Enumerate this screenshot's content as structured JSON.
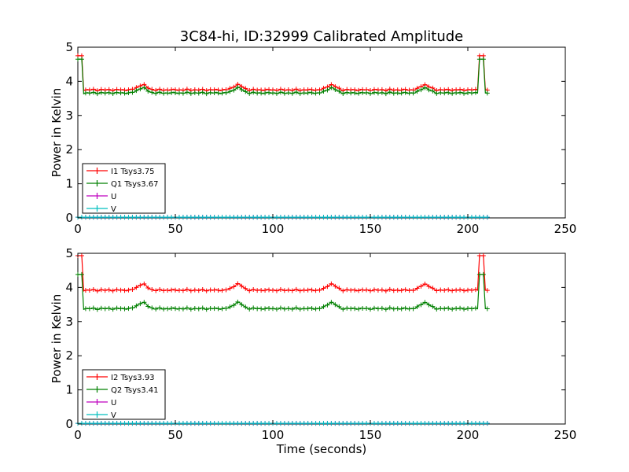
{
  "figure": {
    "title": "3C84-hi, ID:32999 Calibrated Amplitude"
  },
  "chart_data": [
    {
      "type": "line",
      "title": "3C84-hi, ID:32999 Calibrated Amplitude",
      "xlabel": "",
      "ylabel": "Power in Kelvin",
      "xlim": [
        0,
        250
      ],
      "ylim": [
        0,
        5
      ],
      "xticks": [
        "0",
        "50",
        "100",
        "150",
        "200",
        "250"
      ],
      "yticks": [
        "0",
        "1",
        "2",
        "3",
        "4",
        "5"
      ],
      "grid": false,
      "legend_position": "lower-left",
      "marker": "+",
      "series": [
        {
          "name": "I1 Tsys3.75",
          "color": "#ff0000",
          "base": 3.75,
          "edge": 4.75,
          "bump": 0.15
        },
        {
          "name": "Q1 Tsys3.67",
          "color": "#008000",
          "base": 3.66,
          "edge": 4.65,
          "bump": 0.15
        },
        {
          "name": "U",
          "color": "#bf00bf",
          "base": 0.02,
          "edge": 0.02,
          "bump": 0
        },
        {
          "name": "V",
          "color": "#00bfbf",
          "base": 0.02,
          "edge": 0.02,
          "bump": 0
        }
      ]
    },
    {
      "type": "line",
      "title": "",
      "xlabel": "Time (seconds)",
      "ylabel": "Power in Kelvin",
      "xlim": [
        0,
        250
      ],
      "ylim": [
        0,
        5
      ],
      "xticks": [
        "0",
        "50",
        "100",
        "150",
        "200",
        "250"
      ],
      "yticks": [
        "0",
        "1",
        "2",
        "3",
        "4",
        "5"
      ],
      "grid": false,
      "legend_position": "lower-left",
      "marker": "+",
      "series": [
        {
          "name": "I2 Tsys3.93",
          "color": "#ff0000",
          "base": 3.92,
          "edge": 4.93,
          "bump": 0.18
        },
        {
          "name": "Q2 Tsys3.41",
          "color": "#008000",
          "base": 3.38,
          "edge": 4.38,
          "bump": 0.18
        },
        {
          "name": "U",
          "color": "#bf00bf",
          "base": 0.02,
          "edge": 0.02,
          "bump": 0
        },
        {
          "name": "V",
          "color": "#00bfbf",
          "base": 0.02,
          "edge": 0.02,
          "bump": 0
        }
      ]
    }
  ]
}
